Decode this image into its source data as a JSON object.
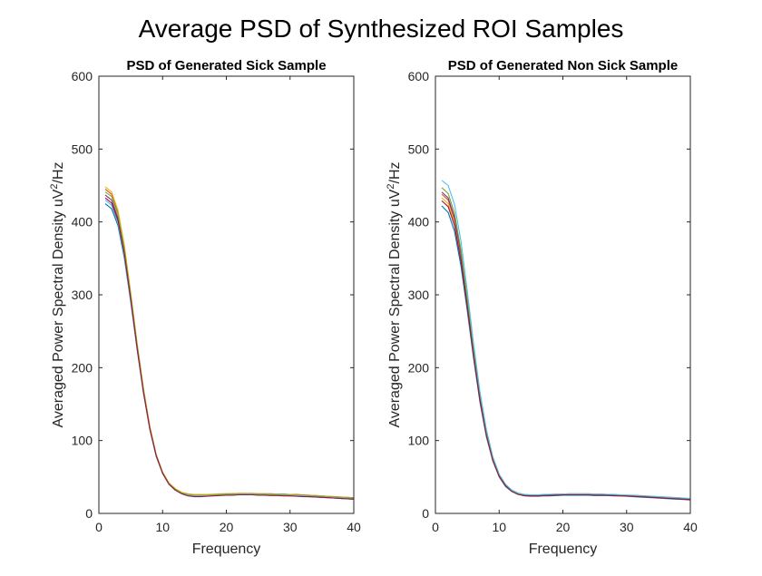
{
  "figure": {
    "title": "Average PSD of Synthesized ROI Samples"
  },
  "chart_data": [
    {
      "type": "line",
      "title": "PSD of Generated Sick Sample",
      "xlabel": "Frequency",
      "ylabel_base": "Averaged Power Spectral Density uV",
      "ylabel_sup": "2",
      "ylabel_tail": "/Hz",
      "xlim": [
        0,
        40
      ],
      "ylim": [
        0,
        600
      ],
      "xticks": [
        0,
        10,
        20,
        30,
        40
      ],
      "yticks": [
        0,
        100,
        200,
        300,
        400,
        500,
        600
      ],
      "grid": false,
      "x": [
        1,
        2,
        3,
        4,
        5,
        6,
        7,
        8,
        9,
        10,
        11,
        12,
        13,
        14,
        15,
        16,
        17,
        18,
        19,
        20,
        21,
        22,
        23,
        24,
        25,
        26,
        27,
        28,
        29,
        30,
        31,
        32,
        33,
        34,
        35,
        36,
        37,
        38,
        39,
        40
      ],
      "series": [
        {
          "color": "#0072BD",
          "values": [
            425,
            418,
            395,
            350,
            290,
            225,
            165,
            115,
            78,
            55,
            40,
            32,
            27,
            25,
            24,
            24,
            24,
            24.5,
            25,
            25.5,
            26,
            26,
            26,
            26,
            25.5,
            25.5,
            25,
            25,
            24.5,
            24,
            24,
            23.5,
            23,
            22.5,
            22,
            21.5,
            21,
            20.5,
            20,
            19.5
          ]
        },
        {
          "color": "#D95319",
          "values": [
            445,
            438,
            412,
            365,
            300,
            232,
            170,
            118,
            80,
            56,
            41,
            33,
            28,
            26,
            25,
            25,
            25.5,
            26,
            26.5,
            27,
            27,
            27.5,
            27.5,
            27.5,
            27,
            27,
            27,
            26.5,
            26.5,
            26,
            26,
            25.5,
            25,
            24.5,
            24,
            23.5,
            23,
            22.5,
            22,
            21.5
          ]
        },
        {
          "color": "#EDB120",
          "values": [
            448,
            441,
            416,
            368,
            303,
            234,
            172,
            120,
            81,
            57,
            42,
            34,
            29,
            27,
            26,
            26,
            26,
            26.5,
            27,
            27,
            27.5,
            27.5,
            27.5,
            27,
            27,
            27,
            26.5,
            26.5,
            26,
            26,
            25.5,
            25,
            25,
            24.5,
            24,
            23.5,
            23,
            22.5,
            22,
            21
          ]
        },
        {
          "color": "#7E2F8E",
          "values": [
            437,
            430,
            405,
            358,
            295,
            228,
            167,
            116,
            79,
            55,
            40,
            32,
            27,
            25,
            24,
            24,
            24.5,
            25,
            25.5,
            26,
            26,
            26,
            26,
            26,
            25.5,
            25.5,
            25.5,
            25,
            25,
            24.5,
            24,
            24,
            23.5,
            23,
            22.5,
            22,
            21.5,
            21,
            20.5,
            20
          ]
        },
        {
          "color": "#77AC30",
          "values": [
            441,
            435,
            410,
            363,
            299,
            231,
            169,
            117,
            80,
            56,
            41,
            33,
            28,
            26,
            25,
            25,
            25,
            25.5,
            26,
            26.5,
            26.5,
            27,
            27,
            27,
            26.5,
            26.5,
            26,
            26,
            26,
            25.5,
            25,
            25,
            24.5,
            24,
            23.5,
            23,
            22.5,
            22,
            21.5,
            21
          ]
        },
        {
          "color": "#4DBEEE",
          "values": [
            430,
            423,
            399,
            353,
            292,
            226,
            166,
            115,
            78,
            55,
            40,
            32,
            27,
            25,
            24,
            24,
            24,
            24.5,
            25,
            25.5,
            25.5,
            26,
            26,
            26,
            25.5,
            25.5,
            25,
            25,
            25,
            24.5,
            24,
            24,
            23.5,
            23,
            22.5,
            22,
            21.5,
            21,
            20.5,
            20
          ]
        },
        {
          "color": "#A2142F",
          "values": [
            433,
            426,
            402,
            356,
            294,
            227,
            166,
            116,
            79,
            55,
            40,
            32,
            27,
            24,
            23,
            23,
            23.5,
            24,
            24.5,
            25,
            25,
            25.5,
            25.5,
            25.5,
            25,
            25,
            24.5,
            24.5,
            24,
            24,
            23.5,
            23,
            23,
            22.5,
            22,
            21.5,
            21,
            20.5,
            20,
            19.5
          ]
        }
      ]
    },
    {
      "type": "line",
      "title": "PSD of Generated Non Sick Sample",
      "xlabel": "Frequency",
      "ylabel_base": "Averaged Power Spectral Density uV",
      "ylabel_sup": "2",
      "ylabel_tail": "/Hz",
      "xlim": [
        0,
        40
      ],
      "ylim": [
        0,
        600
      ],
      "xticks": [
        0,
        10,
        20,
        30,
        40
      ],
      "yticks": [
        0,
        100,
        200,
        300,
        400,
        500,
        600
      ],
      "grid": false,
      "x": [
        1,
        2,
        3,
        4,
        5,
        6,
        7,
        8,
        9,
        10,
        11,
        12,
        13,
        14,
        15,
        16,
        17,
        18,
        19,
        20,
        21,
        22,
        23,
        24,
        25,
        26,
        27,
        28,
        29,
        30,
        31,
        32,
        33,
        34,
        35,
        36,
        37,
        38,
        39,
        40
      ],
      "series": [
        {
          "color": "#0072BD",
          "values": [
            422,
            413,
            387,
            340,
            278,
            212,
            152,
            105,
            72,
            50,
            37,
            30,
            26,
            24,
            23.5,
            23.5,
            24,
            24,
            24.5,
            25,
            25,
            25,
            25,
            25,
            24.5,
            24.5,
            24.5,
            24,
            24,
            23.5,
            23,
            22.5,
            22,
            21.5,
            21,
            20.5,
            20,
            19.5,
            19,
            18.5
          ]
        },
        {
          "color": "#D95319",
          "values": [
            438,
            430,
            403,
            354,
            289,
            220,
            158,
            109,
            74,
            51,
            38,
            31,
            27,
            25,
            24.5,
            24.5,
            25,
            25,
            25.5,
            26,
            26,
            26,
            26,
            26,
            25.5,
            25.5,
            25,
            25,
            25,
            24.5,
            24,
            23.5,
            23,
            22.5,
            22,
            21.5,
            21,
            20.5,
            20,
            19.5
          ]
        },
        {
          "color": "#EDB120",
          "values": [
            433,
            425,
            398,
            350,
            286,
            218,
            157,
            108,
            73,
            51,
            38,
            31,
            27,
            25.5,
            25,
            25,
            25.5,
            26,
            26.5,
            26.5,
            27,
            27,
            27,
            27,
            26.5,
            26.5,
            26,
            26,
            25.5,
            25,
            25,
            24.5,
            24,
            23.5,
            23,
            22.5,
            22,
            21.5,
            21,
            20.5
          ]
        },
        {
          "color": "#7E2F8E",
          "values": [
            441,
            433,
            406,
            357,
            291,
            222,
            159,
            110,
            75,
            52,
            38,
            31,
            27,
            25,
            24.5,
            24.5,
            25,
            25,
            25.5,
            25.5,
            26,
            26,
            26,
            26,
            25.5,
            25.5,
            25.5,
            25,
            25,
            24.5,
            24,
            24,
            23.5,
            23,
            22.5,
            22,
            21.5,
            21,
            20.5,
            20
          ]
        },
        {
          "color": "#77AC30",
          "values": [
            447,
            439,
            412,
            362,
            295,
            225,
            161,
            111,
            75,
            52,
            39,
            31,
            27,
            25.5,
            25,
            25,
            25.5,
            26,
            26,
            26.5,
            26.5,
            26.5,
            26.5,
            26.5,
            26,
            26,
            26,
            25.5,
            25,
            25,
            24.5,
            24,
            23.5,
            23,
            22.5,
            22,
            21.5,
            21,
            20.5,
            20
          ]
        },
        {
          "color": "#4DBEEE",
          "values": [
            457,
            450,
            424,
            374,
            305,
            232,
            166,
            115,
            78,
            54,
            40,
            32,
            28,
            26,
            25.5,
            25.5,
            26,
            26,
            26.5,
            26.5,
            27,
            27,
            27,
            27,
            26.5,
            26.5,
            26,
            26,
            25.5,
            25,
            25,
            24.5,
            24,
            23.5,
            23,
            22.5,
            22,
            21.5,
            21,
            20.5
          ]
        },
        {
          "color": "#A2142F",
          "values": [
            429,
            421,
            395,
            347,
            284,
            216,
            155,
            107,
            73,
            51,
            38,
            30,
            26,
            24.5,
            24,
            24,
            24.5,
            25,
            25,
            25.5,
            25.5,
            25.5,
            25.5,
            25.5,
            25,
            25,
            25,
            24.5,
            24,
            24,
            23.5,
            23,
            22.5,
            22,
            21.5,
            21,
            20.5,
            20,
            19.5,
            19
          ]
        }
      ]
    }
  ]
}
